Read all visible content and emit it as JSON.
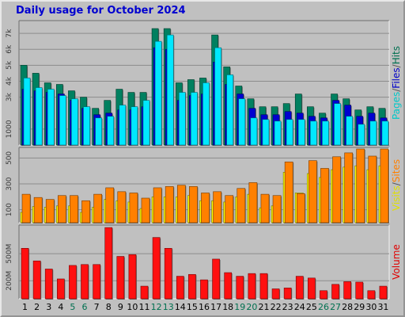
{
  "chart_title": "Daily usage for October 2024",
  "chart_data": {
    "type": "bar",
    "title": "Daily usage for October 2024",
    "categories": [
      "1",
      "2",
      "3",
      "4",
      "5",
      "6",
      "7",
      "8",
      "9",
      "10",
      "11",
      "12",
      "13",
      "14",
      "15",
      "16",
      "17",
      "18",
      "19",
      "20",
      "21",
      "22",
      "23",
      "24",
      "25",
      "26",
      "27",
      "28",
      "29",
      "30",
      "31"
    ],
    "weekend_days": [
      "5",
      "6",
      "12",
      "13",
      "19",
      "20",
      "26",
      "27"
    ],
    "panels": [
      {
        "name": "hits-files-pages",
        "ylim": [
          0,
          7700
        ],
        "yticks": [
          {
            "value": 1000,
            "label": "1000"
          },
          {
            "value": 3000,
            "label": "3k"
          },
          {
            "value": 4000,
            "label": "4k"
          },
          {
            "value": 5000,
            "label": "5k"
          },
          {
            "value": 6000,
            "label": "6k"
          },
          {
            "value": 7000,
            "label": "7k"
          }
        ],
        "side_label": [
          {
            "text": "Pages",
            "color": "#00c8c8"
          },
          {
            "text": "/",
            "color": "#555555"
          },
          {
            "text": "Files",
            "color": "#0000c8"
          },
          {
            "text": "/",
            "color": "#555555"
          },
          {
            "text": "Hits",
            "color": "#007050"
          }
        ],
        "series": [
          {
            "name": "Hits",
            "color": "#008060",
            "values": [
              5000,
              4500,
              3900,
              3800,
              3400,
              3000,
              2300,
              2800,
              3500,
              3300,
              3300,
              7300,
              7300,
              3900,
              4100,
              4200,
              6900,
              4900,
              3700,
              2900,
              2400,
              2400,
              2600,
              3200,
              2400,
              2000,
              3200,
              2900,
              2200,
              2400,
              2300
            ]
          },
          {
            "name": "Files",
            "color": "#0000d0",
            "values": [
              3500,
              3400,
              3300,
              3200,
              2800,
              2300,
              1900,
              2000,
              2200,
              2200,
              2400,
              6100,
              6000,
              2800,
              3100,
              3200,
              5200,
              3800,
              3200,
              2300,
              1900,
              1900,
              2100,
              2000,
              1800,
              1700,
              2800,
              2500,
              1800,
              2000,
              1700
            ]
          },
          {
            "name": "Pages",
            "color": "#00e8ff",
            "values": [
              4200,
              3600,
              3500,
              3100,
              2900,
              2400,
              1700,
              1800,
              2500,
              2400,
              2800,
              6500,
              6900,
              3300,
              3300,
              3900,
              6100,
              4400,
              2900,
              1700,
              1600,
              1500,
              1600,
              1600,
              1500,
              1500,
              2600,
              1800,
              1300,
              1500,
              1500
            ]
          }
        ]
      },
      {
        "name": "visits-sites",
        "ylim": [
          0,
          570
        ],
        "yticks": [
          {
            "value": 100,
            "label": "100"
          },
          {
            "value": 300,
            "label": "300"
          },
          {
            "value": 500,
            "label": "500"
          }
        ],
        "side_label": [
          {
            "text": "Visits",
            "color": "#e0e000"
          },
          {
            "text": "/",
            "color": "#555555"
          },
          {
            "text": "Sites",
            "color": "#ff8000"
          }
        ],
        "series": [
          {
            "name": "Visits",
            "color": "#ffff00",
            "values": [
              80,
              125,
              120,
              130,
              130,
              80,
              120,
              180,
              170,
              160,
              110,
              200,
              200,
              200,
              210,
              170,
              170,
              160,
              200,
              220,
              115,
              130,
              390,
              230,
              380,
              350,
              410,
              430,
              440,
              410,
              440
            ]
          },
          {
            "name": "Sites",
            "color": "#ff8000",
            "values": [
              220,
              195,
              180,
              210,
              210,
              170,
              220,
              270,
              240,
              230,
              190,
              270,
              280,
              290,
              280,
              230,
              240,
              210,
              265,
              310,
              220,
              210,
              470,
              225,
              480,
              420,
              510,
              540,
              570,
              515,
              570
            ]
          }
        ]
      },
      {
        "name": "volume",
        "ylim": [
          0,
          800
        ],
        "yticks": [
          {
            "value": 200,
            "label": "200M"
          },
          {
            "value": 500,
            "label": "500M"
          }
        ],
        "side_label": [
          {
            "text": "Volume",
            "color": "#e00000"
          }
        ],
        "series": [
          {
            "name": "Volume",
            "color": "#ff1010",
            "values": [
              560,
              420,
              330,
              220,
              370,
              380,
              380,
              790,
              470,
              490,
              140,
              680,
              560,
              250,
              270,
              210,
              440,
              290,
              250,
              280,
              280,
              110,
              120,
              250,
              230,
              90,
              160,
              190,
              185,
              90,
              140
            ]
          }
        ]
      }
    ]
  }
}
